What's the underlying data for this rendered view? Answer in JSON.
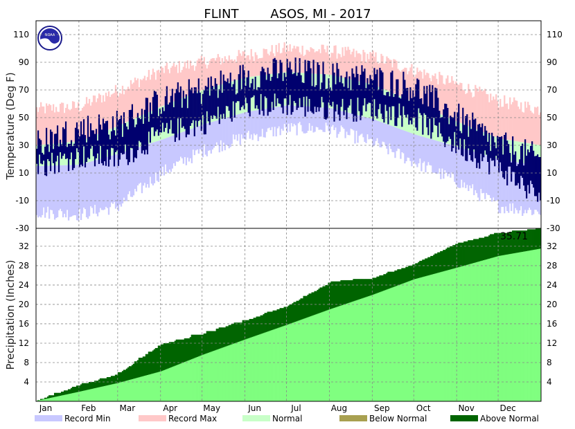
{
  "chart_data": {
    "type": "line",
    "title": "FLINT        ASOS, MI - 2017",
    "months": [
      "Jan",
      "Feb",
      "Mar",
      "Apr",
      "May",
      "Jun",
      "Jul",
      "Aug",
      "Sep",
      "Oct",
      "Nov",
      "Dec"
    ],
    "temperature": {
      "ylabel": "Temperature (Deg F)",
      "ylim": [
        -30,
        120
      ],
      "ticks": [
        110,
        90,
        70,
        50,
        30,
        10,
        -10,
        -30
      ],
      "days": [
        1,
        32,
        60,
        91,
        121,
        152,
        182,
        213,
        244,
        274,
        305,
        335,
        365
      ],
      "record_max": [
        56,
        58,
        70,
        84,
        90,
        95,
        100,
        98,
        94,
        84,
        74,
        62,
        56
      ],
      "record_min": [
        -18,
        -20,
        -14,
        10,
        26,
        36,
        42,
        42,
        32,
        18,
        4,
        -14,
        -18
      ],
      "normal_high": [
        30,
        33,
        44,
        58,
        70,
        79,
        83,
        81,
        74,
        61,
        47,
        35,
        30
      ],
      "normal_low": [
        15,
        16,
        24,
        34,
        45,
        54,
        59,
        57,
        49,
        38,
        29,
        20,
        15
      ],
      "observed_high": [
        32,
        42,
        45,
        62,
        70,
        80,
        84,
        80,
        78,
        72,
        50,
        30,
        20
      ],
      "observed_low": [
        15,
        22,
        20,
        38,
        46,
        58,
        60,
        56,
        56,
        50,
        30,
        14,
        -8
      ]
    },
    "precipitation": {
      "ylabel": "Precipitation (Inches)",
      "ylim": [
        0,
        35.7
      ],
      "ticks": [
        4,
        8,
        12,
        16,
        20,
        24,
        28,
        32
      ],
      "total_label": "35.71",
      "days": [
        1,
        32,
        60,
        91,
        121,
        152,
        182,
        213,
        244,
        274,
        305,
        335,
        365
      ],
      "normal": [
        0.1,
        2.0,
        3.8,
        6.2,
        9.6,
        12.8,
        15.8,
        19.0,
        22.0,
        25.2,
        27.6,
        30.0,
        31.5
      ],
      "observed": [
        0.1,
        3.3,
        5.6,
        11.7,
        13.8,
        16.6,
        19.6,
        24.4,
        25.4,
        28.3,
        32.6,
        34.6,
        35.71
      ]
    },
    "legend": [
      {
        "label": "Record Min",
        "color": "#c8c8ff"
      },
      {
        "label": "Record Max",
        "color": "#ffc8c8"
      },
      {
        "label": "Normal",
        "color": "#c8ffc8"
      },
      {
        "label": "Below Normal",
        "color": "#a8a050"
      },
      {
        "label": "Above Normal",
        "color": "#006400"
      }
    ],
    "colors": {
      "record_min": "#c8c8ff",
      "record_max": "#ffc8c8",
      "normal_band": "#c8ffc8",
      "observed_bar": "#00006e",
      "precip_normal": "#80ff80",
      "precip_above": "#006400"
    },
    "grid": true,
    "legend_position": "bottom"
  }
}
